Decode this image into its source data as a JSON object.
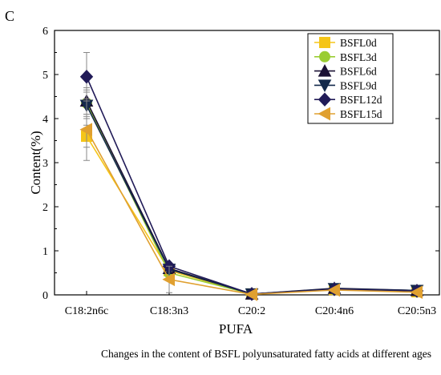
{
  "panel_label": "C",
  "caption": "Changes in the content of BSFL polyunsaturated fatty acids at different ages",
  "chart_data": {
    "type": "line",
    "xlabel": "PUFA",
    "ylabel": "Content(%)",
    "categories": [
      "C18:2n6c",
      "C18:3n3",
      "C20:2",
      "C20:4n6",
      "C20:5n3"
    ],
    "ylim": [
      0,
      6
    ],
    "yticks": [
      0,
      1,
      2,
      3,
      4,
      5,
      6
    ],
    "grid": false,
    "legend_position": "top-right",
    "series": [
      {
        "name": "BSFL0d",
        "values": [
          3.6,
          0.55,
          0.02,
          0.12,
          0.07
        ],
        "error": [
          0.25,
          0.05,
          0.01,
          0.02,
          0.02
        ],
        "color": "#F5C518",
        "marker": "square"
      },
      {
        "name": "BSFL3d",
        "values": [
          4.35,
          0.5,
          0.02,
          0.12,
          0.08
        ],
        "error": [
          0.3,
          0.05,
          0.01,
          0.02,
          0.02
        ],
        "color": "#9ACD32",
        "marker": "circle"
      },
      {
        "name": "BSFL6d",
        "values": [
          4.4,
          0.6,
          0.02,
          0.15,
          0.1
        ],
        "error": [
          0.3,
          0.05,
          0.01,
          0.02,
          0.02
        ],
        "color": "#1A1033",
        "marker": "triangle-up"
      },
      {
        "name": "BSFL9d",
        "values": [
          4.3,
          0.58,
          0.02,
          0.14,
          0.1
        ],
        "error": [
          0.3,
          0.05,
          0.01,
          0.02,
          0.02
        ],
        "color": "#13294B",
        "marker": "triangle-down"
      },
      {
        "name": "BSFL12d",
        "values": [
          4.95,
          0.65,
          0.02,
          0.13,
          0.09
        ],
        "error": [
          0.55,
          0.06,
          0.01,
          0.02,
          0.02
        ],
        "color": "#211B58",
        "marker": "diamond"
      },
      {
        "name": "BSFL15d",
        "values": [
          3.75,
          0.35,
          0.01,
          0.11,
          0.06
        ],
        "error": [
          0.7,
          0.3,
          0.01,
          0.02,
          0.02
        ],
        "color": "#E0A030",
        "marker": "triangle-left"
      }
    ]
  }
}
